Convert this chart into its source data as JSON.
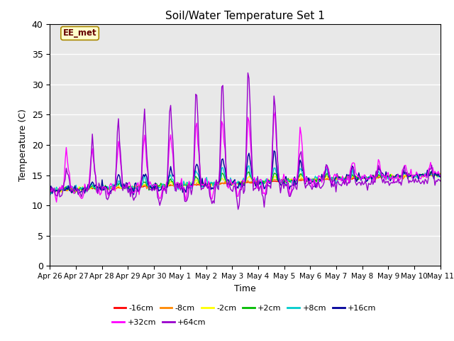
{
  "title": "Soil/Water Temperature Set 1",
  "xlabel": "Time",
  "ylabel": "Temperature (C)",
  "ylim": [
    0,
    40
  ],
  "yticks": [
    0,
    5,
    10,
    15,
    20,
    25,
    30,
    35,
    40
  ],
  "x_labels": [
    "Apr 26",
    "Apr 27",
    "Apr 28",
    "Apr 29",
    "Apr 30",
    "May 1",
    "May 2",
    "May 3",
    "May 4",
    "May 5",
    "May 6",
    "May 7",
    "May 8",
    "May 9",
    "May 10",
    "May 11"
  ],
  "annotation_text": "EE_met",
  "background_color": "#e8e8e8",
  "series_colors": {
    "-16cm": "#ff0000",
    "-8cm": "#ff8800",
    "-2cm": "#ffff00",
    "+2cm": "#00bb00",
    "+8cm": "#00cccc",
    "+16cm": "#000099",
    "+32cm": "#ff00ff",
    "+64cm": "#9900cc"
  }
}
